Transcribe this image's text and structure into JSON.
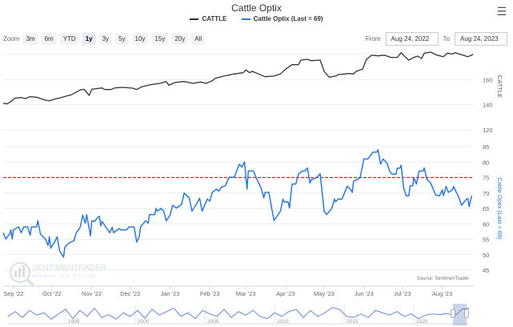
{
  "title": "Cattle Optix",
  "menu_icon": "hamburger-menu-icon",
  "legend": [
    {
      "label": "CATTLE",
      "color": "#333333"
    },
    {
      "label": "Cattle Optix (Last = 69)",
      "color": "#2a78d6"
    }
  ],
  "zoom": {
    "label": "Zoom",
    "buttons": [
      "3m",
      "6m",
      "YTD",
      "1y",
      "3y",
      "5y",
      "10y",
      "15y",
      "20y",
      "All"
    ],
    "selected": "1y"
  },
  "range": {
    "from_label": "From",
    "from": "Aug 24, 2022",
    "to_label": "To",
    "to": "Aug 24, 2023"
  },
  "watermark": {
    "name": "SENTIMENTRADER",
    "tagline": "Analysis over Emotion"
  },
  "source": "Source: SentimenTrader",
  "chart_data": {
    "type": "line",
    "title": "Cattle Optix",
    "x_unit": "days since Aug 24, 2022",
    "xlim": [
      0,
      366
    ],
    "x_ticks": [
      {
        "label": "Sep '22",
        "day": 8
      },
      {
        "label": "Oct '22",
        "day": 38
      },
      {
        "label": "Nov '22",
        "day": 69
      },
      {
        "label": "Dec '22",
        "day": 99
      },
      {
        "label": "Jan '23",
        "day": 130
      },
      {
        "label": "Feb '23",
        "day": 161
      },
      {
        "label": "Mar '23",
        "day": 189
      },
      {
        "label": "Apr '23",
        "day": 220
      },
      {
        "label": "May '23",
        "day": 250
      },
      {
        "label": "Jun '23",
        "day": 281
      },
      {
        "label": "Jul '23",
        "day": 311
      },
      {
        "label": "Aug '23",
        "day": 342
      }
    ],
    "panes": [
      {
        "name": "CATTLE",
        "ylabel": "CATTLE",
        "ylim": [
          120,
          180
        ],
        "y_ticks": [
          120,
          140,
          160
        ],
        "color": "#333333",
        "x": [
          0,
          3,
          7,
          9,
          14,
          17,
          21,
          26,
          29,
          33,
          36,
          41,
          45,
          53,
          60,
          63,
          67,
          69,
          77,
          79,
          84,
          87,
          93,
          101,
          104,
          108,
          115,
          122,
          127,
          129,
          134,
          141,
          148,
          154,
          158,
          163,
          165,
          172,
          180,
          187,
          189,
          192,
          194,
          199,
          204,
          211,
          216,
          220,
          225,
          230,
          232,
          237,
          240,
          247,
          250,
          254,
          259,
          261,
          266,
          269,
          273,
          275,
          280,
          283,
          287,
          292,
          297,
          302,
          307,
          310,
          313,
          316,
          320,
          323,
          326,
          328,
          333,
          338,
          343,
          346,
          350,
          352,
          357,
          362,
          365,
          366
        ],
        "y": [
          141.2,
          140.7,
          143.2,
          145.3,
          145.7,
          144.9,
          146.4,
          146.0,
          144.9,
          143.6,
          143.2,
          144.7,
          145.7,
          147.9,
          151.7,
          152.3,
          147.4,
          152.3,
          153.4,
          152.1,
          152.1,
          153.4,
          153.8,
          153.2,
          152.1,
          154.3,
          156.0,
          157.0,
          158.5,
          155.5,
          157.7,
          158.5,
          157.0,
          158.1,
          157.0,
          159.1,
          160.9,
          162.8,
          164.5,
          165.5,
          167.7,
          165.5,
          166.6,
          164.5,
          162.3,
          162.8,
          164.5,
          168.3,
          171.9,
          171.9,
          175.5,
          176.2,
          175.1,
          175.5,
          166.6,
          161.9,
          162.8,
          164.0,
          164.5,
          164.9,
          164.5,
          166.6,
          168.3,
          176.2,
          179.4,
          178.9,
          179.4,
          177.7,
          177.7,
          181.5,
          178.3,
          175.5,
          177.7,
          178.7,
          176.8,
          181.1,
          181.9,
          179.4,
          178.3,
          181.1,
          180.4,
          181.5,
          179.8,
          178.3,
          179.4,
          180.4
        ]
      },
      {
        "name": "Cattle Optix",
        "ylabel": "Cattle Optix (Last = 69)",
        "ylim": [
          45,
          85
        ],
        "y_ticks": [
          45,
          50,
          55,
          60,
          65,
          70,
          75,
          80,
          85
        ],
        "color": "#2a78d6",
        "threshold": {
          "value": 75,
          "color": "#e02020",
          "style": "dashed"
        },
        "x": [
          0,
          2,
          5,
          6,
          7,
          8,
          12,
          14,
          16,
          19,
          21,
          22,
          26,
          27,
          29,
          33,
          35,
          36,
          37,
          40,
          42,
          44,
          47,
          48,
          51,
          55,
          57,
          60,
          62,
          64,
          65,
          68,
          69,
          71,
          74,
          75,
          76,
          77,
          80,
          83,
          85,
          86,
          90,
          92,
          96,
          98,
          102,
          104,
          106,
          107,
          111,
          113,
          114,
          118,
          119,
          120,
          123,
          125,
          127,
          130,
          132,
          135,
          139,
          141,
          145,
          147,
          150,
          153,
          155,
          159,
          161,
          163,
          166,
          168,
          170,
          173,
          174,
          176,
          180,
          184,
          186,
          188,
          190,
          191,
          195,
          198,
          201,
          203,
          204,
          207,
          209,
          211,
          216,
          218,
          219,
          222,
          223,
          225,
          228,
          230,
          233,
          235,
          237,
          239,
          240,
          244,
          247,
          250,
          252,
          256,
          258,
          259,
          261,
          264,
          268,
          270,
          272,
          273,
          278,
          281,
          284,
          286,
          288,
          291,
          292,
          294,
          296,
          299,
          301,
          303,
          306,
          307,
          309,
          310,
          312,
          314,
          316,
          317,
          319,
          320,
          322,
          324,
          327,
          328,
          330,
          333,
          337,
          340,
          342,
          343,
          345,
          347,
          350,
          351,
          353,
          355,
          357,
          361,
          362,
          363,
          365
        ],
        "y": [
          57.1,
          55.1,
          56.7,
          58.0,
          55.1,
          58.0,
          59.0,
          57.1,
          59.0,
          59.0,
          56.3,
          59.0,
          59.0,
          61.0,
          56.7,
          55.0,
          53.0,
          55.8,
          52.1,
          54.1,
          55.8,
          51.1,
          49.2,
          52.4,
          53.7,
          54.5,
          57.1,
          58.9,
          62.8,
          60.2,
          63.0,
          56.1,
          61.0,
          60.8,
          62.2,
          62.4,
          59.3,
          60.8,
          58.9,
          57.1,
          58.9,
          57.1,
          58.4,
          58.0,
          58.0,
          59.0,
          59.0,
          54.1,
          55.8,
          59.0,
          61.0,
          60.2,
          63.0,
          63.0,
          65.0,
          64.1,
          65.0,
          64.1,
          61.0,
          62.8,
          66.0,
          65.1,
          66.3,
          70.0,
          68.3,
          64.1,
          66.0,
          68.3,
          64.1,
          68.0,
          67.4,
          70.2,
          71.2,
          70.6,
          71.9,
          72.3,
          73.2,
          75.1,
          75.1,
          79.3,
          78.4,
          80.1,
          71.2,
          77.1,
          77.1,
          74.1,
          71.5,
          68.4,
          70.2,
          70.2,
          65.4,
          61.1,
          64.1,
          68.0,
          67.1,
          67.1,
          65.1,
          72.9,
          72.9,
          76.1,
          77.1,
          77.1,
          78.1,
          73.2,
          74.3,
          74.9,
          76.2,
          64.1,
          63.0,
          65.0,
          68.0,
          67.1,
          68.0,
          68.0,
          72.2,
          71.5,
          70.2,
          73.8,
          74.9,
          81.0,
          81.0,
          82.1,
          83.2,
          83.2,
          84.0,
          79.3,
          81.0,
          79.7,
          77.1,
          76.1,
          76.1,
          78.0,
          78.0,
          79.0,
          71.5,
          69.1,
          69.1,
          72.3,
          72.3,
          74.9,
          72.9,
          77.1,
          77.1,
          78.1,
          74.5,
          73.2,
          69.3,
          69.1,
          71.0,
          69.1,
          72.1,
          70.2,
          71.0,
          72.1,
          70.2,
          68.6,
          66.0,
          68.0,
          68.2,
          65.6,
          69.1
        ],
        "last": 69
      }
    ],
    "navigator": {
      "x_ticks": [
        "1995",
        "2000",
        "2005",
        "2010",
        "2015",
        "2020"
      ],
      "values": [
        60,
        68,
        58,
        70,
        62,
        66,
        55,
        64,
        72,
        56,
        70,
        60,
        74,
        58,
        63,
        55,
        66,
        60,
        70,
        57,
        72,
        62,
        68,
        74,
        60,
        66,
        56,
        70,
        64,
        60,
        72,
        58,
        68,
        62,
        70,
        60,
        56,
        66,
        60,
        68,
        72,
        58,
        70,
        60,
        66,
        75,
        72,
        60,
        58,
        64,
        58,
        70,
        66,
        62,
        68,
        60,
        64,
        56,
        62,
        64,
        63,
        65,
        60,
        72,
        74
      ]
    },
    "grid": true,
    "legend_position": "top-center"
  }
}
